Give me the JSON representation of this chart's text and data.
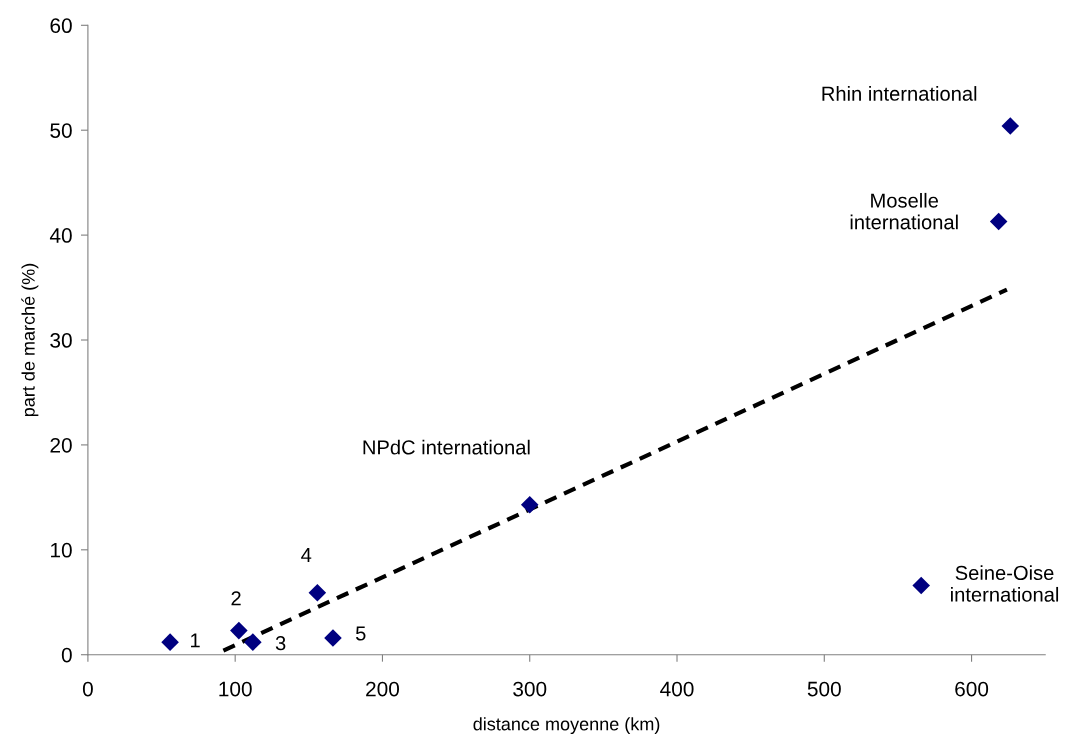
{
  "chart_data": {
    "type": "scatter",
    "xlabel": "distance moyenne (km)",
    "ylabel": "part de marché (%)",
    "xlim": [
      0,
      650
    ],
    "ylim": [
      0,
      60
    ],
    "xticks": [
      0,
      100,
      200,
      300,
      400,
      500,
      600
    ],
    "yticks": [
      0,
      10,
      20,
      30,
      40,
      50,
      60
    ],
    "grid": false,
    "legend": false,
    "marker": "diamond",
    "series": [
      {
        "color": "#000080",
        "x": [
          55.8,
          102.5,
          112,
          155.8,
          166.4,
          300,
          565.8,
          618.4,
          626.3
        ],
        "values": [
          1.2,
          2.3,
          1.2,
          5.9,
          1.6,
          14.3,
          6.6,
          41.3,
          50.4
        ]
      },
      {
        "type": "line",
        "color": "#000000",
        "line_style": "dashed",
        "marker": "none",
        "x": [
          92,
          624
        ],
        "values": [
          0.4,
          34.8
        ]
      }
    ],
    "annotations": [
      {
        "text": "1",
        "x": 55.8,
        "y": 1.2
      },
      {
        "text": "2",
        "x": 102.5,
        "y": 2.3
      },
      {
        "text": "3",
        "x": 112,
        "y": 1.2
      },
      {
        "text": "4",
        "x": 155.8,
        "y": 5.9
      },
      {
        "text": "5",
        "x": 166.4,
        "y": 1.6
      },
      {
        "text": "NPdC international",
        "x": 300,
        "y": 14.3
      },
      {
        "text": "Seine-Oise\ninternational",
        "x": 565.8,
        "y": 6.6
      },
      {
        "text": "Moselle\ninternational",
        "x": 618.4,
        "y": 41.3
      },
      {
        "text": "Rhin international",
        "x": 626.3,
        "y": 50.4
      }
    ]
  }
}
